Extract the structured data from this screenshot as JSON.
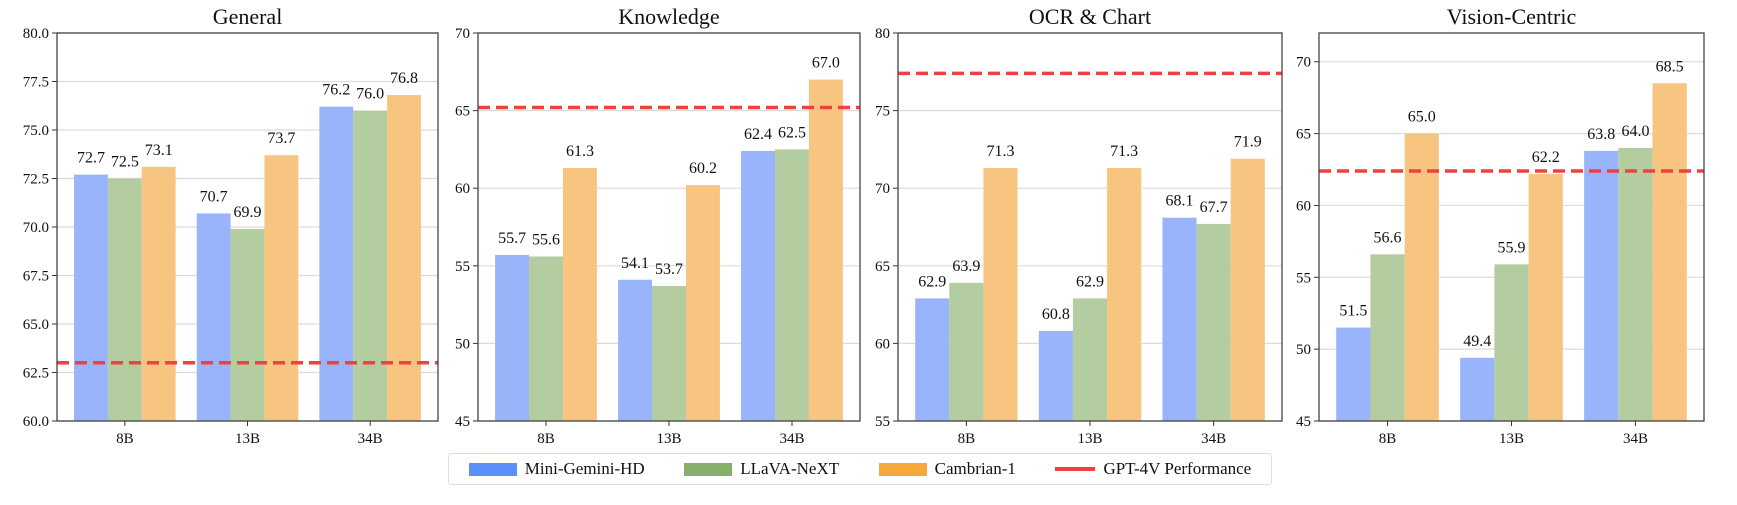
{
  "chart_data": [
    {
      "type": "bar",
      "title": "General",
      "categories": [
        "8B",
        "13B",
        "34B"
      ],
      "ylim": [
        60,
        80
      ],
      "yticks": [
        "60.0",
        "62.5",
        "65.0",
        "67.5",
        "70.0",
        "72.5",
        "75.0",
        "77.5",
        "80.0"
      ],
      "ytick_values": [
        60,
        62.5,
        65,
        67.5,
        70,
        72.5,
        75,
        77.5,
        80
      ],
      "series": [
        {
          "name": "Mini-Gemini-HD",
          "values": [
            72.7,
            70.7,
            76.2
          ]
        },
        {
          "name": "LLaVA-NeXT",
          "values": [
            72.5,
            69.9,
            76.0
          ]
        },
        {
          "name": "Cambrian-1",
          "values": [
            73.1,
            73.7,
            76.8
          ]
        }
      ],
      "reference_line": {
        "name": "GPT-4V Performance",
        "value": 63.0
      },
      "grid": true
    },
    {
      "type": "bar",
      "title": "Knowledge",
      "categories": [
        "8B",
        "13B",
        "34B"
      ],
      "ylim": [
        45,
        70
      ],
      "yticks": [
        "45",
        "50",
        "55",
        "60",
        "65",
        "70"
      ],
      "ytick_values": [
        45,
        50,
        55,
        60,
        65,
        70
      ],
      "series": [
        {
          "name": "Mini-Gemini-HD",
          "values": [
            55.7,
            54.1,
            62.4
          ]
        },
        {
          "name": "LLaVA-NeXT",
          "values": [
            55.6,
            53.7,
            62.5
          ]
        },
        {
          "name": "Cambrian-1",
          "values": [
            61.3,
            60.2,
            67.0
          ]
        }
      ],
      "reference_line": {
        "name": "GPT-4V Performance",
        "value": 65.2
      },
      "grid": true
    },
    {
      "type": "bar",
      "title": "OCR & Chart",
      "categories": [
        "8B",
        "13B",
        "34B"
      ],
      "ylim": [
        55,
        80
      ],
      "yticks": [
        "55",
        "60",
        "65",
        "70",
        "75",
        "80"
      ],
      "ytick_values": [
        55,
        60,
        65,
        70,
        75,
        80
      ],
      "series": [
        {
          "name": "Mini-Gemini-HD",
          "values": [
            62.9,
            60.8,
            68.1
          ]
        },
        {
          "name": "LLaVA-NeXT",
          "values": [
            63.9,
            62.9,
            67.7
          ]
        },
        {
          "name": "Cambrian-1",
          "values": [
            71.3,
            71.3,
            71.9
          ]
        }
      ],
      "reference_line": {
        "name": "GPT-4V Performance",
        "value": 77.4
      },
      "grid": true
    },
    {
      "type": "bar",
      "title": "Vision-Centric",
      "categories": [
        "8B",
        "13B",
        "34B"
      ],
      "ylim": [
        45,
        72
      ],
      "yticks": [
        "45",
        "50",
        "55",
        "60",
        "65",
        "70"
      ],
      "ytick_values": [
        45,
        50,
        55,
        60,
        65,
        70
      ],
      "series": [
        {
          "name": "Mini-Gemini-HD",
          "values": [
            51.5,
            49.4,
            63.8
          ]
        },
        {
          "name": "LLaVA-NeXT",
          "values": [
            56.6,
            55.9,
            64.0
          ]
        },
        {
          "name": "Cambrian-1",
          "values": [
            65.0,
            62.2,
            68.5
          ]
        }
      ],
      "reference_line": {
        "name": "GPT-4V Performance",
        "value": 62.4
      },
      "grid": true
    }
  ],
  "legend": {
    "placement": "bottom-center",
    "items": [
      {
        "label": "Mini-Gemini-HD",
        "color": "#5b8ff9"
      },
      {
        "label": "LLaVA-NeXT",
        "color": "#86b06c"
      },
      {
        "label": "Cambrian-1",
        "color": "#f5a93b"
      },
      {
        "label": "GPT-4V Performance",
        "color": "#f04040"
      }
    ]
  },
  "colors": {
    "bar_fills": [
      "#99b4fb",
      "#b3cca0",
      "#f8c580"
    ],
    "reference_line": "#f04040"
  }
}
